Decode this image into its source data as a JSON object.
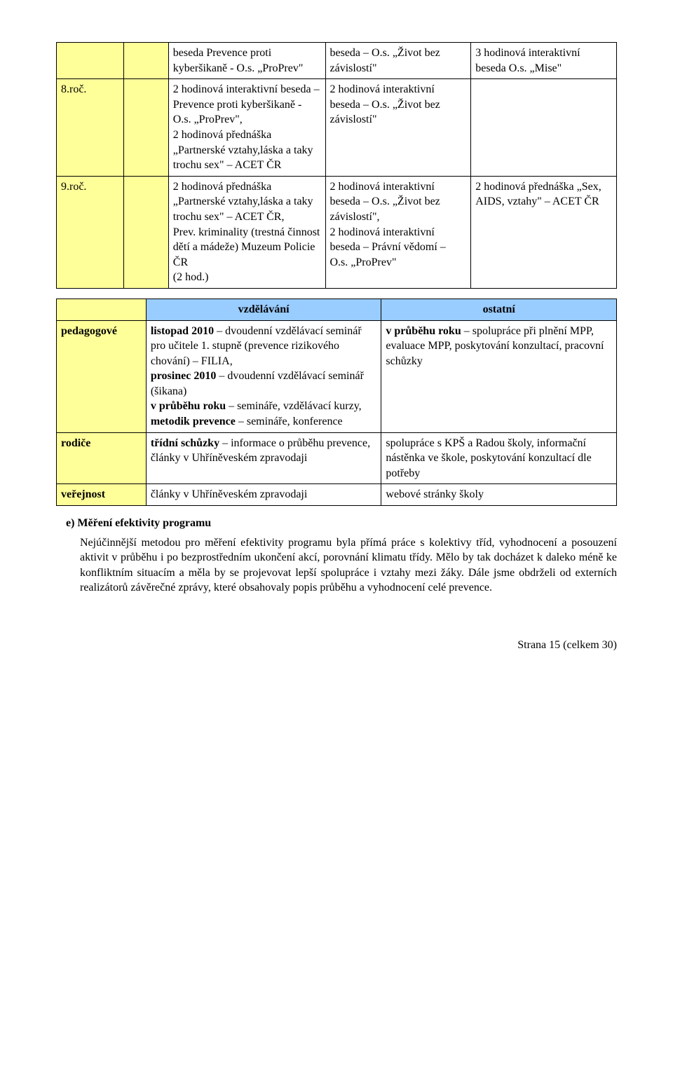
{
  "table1": {
    "rows": [
      {
        "label": "",
        "c2": "",
        "c3": "beseda Prevence proti kyberšikaně - O.s. „ProPrev\"",
        "c4": "beseda – O.s. „Život bez závislostí\"",
        "c5": "3 hodinová interaktivní beseda O.s. „Mise\""
      },
      {
        "label": "8.roč.",
        "c2": "",
        "c3": "2 hodinová interaktivní beseda – Prevence proti kyberšikaně - O.s. „ProPrev\",\n2 hodinová přednáška „Partnerské vztahy,láska a taky trochu sex\" – ACET ČR",
        "c4": "2 hodinová interaktivní beseda – O.s. „Život bez závislostí\"",
        "c5": ""
      },
      {
        "label": "9.roč.",
        "c2": "",
        "c3": "2 hodinová přednáška „Partnerské vztahy,láska a taky trochu sex\" – ACET ČR,\nPrev. kriminality (trestná činnost dětí a mádeže) Muzeum Policie ČR\n(2 hod.)",
        "c4": "2 hodinová interaktivní beseda – O.s. „Život bez závislostí\",\n2 hodinová interaktivní beseda – Právní vědomí – O.s. „ProPrev\"",
        "c5": "2 hodinová přednáška „Sex, AIDS, vztahy\" – ACET ČR"
      }
    ]
  },
  "table2": {
    "header": {
      "col2": "vzdělávání",
      "col3": "ostatní"
    },
    "rows": [
      {
        "label": "pedagogové",
        "col2_segments": [
          {
            "bold": "listopad 2010",
            "rest": " – dvoudenní vzdělávací seminář pro učitele 1. stupně (prevence rizikového chování) – FILIA,"
          },
          {
            "bold": "prosinec 2010",
            "rest": " – dvoudenní vzdělávací seminář (šikana)"
          },
          {
            "bold": "v průběhu roku",
            "rest": " – semináře, vzdělávací kurzy,"
          },
          {
            "bold": "metodik prevence",
            "rest": " – semináře, konference"
          }
        ],
        "col3_segments": [
          {
            "bold": "v průběhu roku",
            "rest": " – spolupráce při plnění MPP, evaluace MPP, poskytování konzultací, pracovní schůzky"
          }
        ]
      },
      {
        "label": "rodiče",
        "col2_segments": [
          {
            "bold": "třídní schůzky",
            "rest": " – informace o průběhu prevence,"
          },
          {
            "bold": "",
            "rest": "články v Uhříněveském zpravodaji"
          }
        ],
        "col3_segments": [
          {
            "bold": "",
            "rest": "spolupráce s KPŠ a Radou školy, informační nástěnka ve škole, poskytování konzultací dle potřeby"
          }
        ]
      },
      {
        "label": "veřejnost",
        "col2_segments": [
          {
            "bold": "",
            "rest": "články v Uhříněveském zpravodaji"
          }
        ],
        "col3_segments": [
          {
            "bold": "",
            "rest": "webové stránky školy"
          }
        ]
      }
    ]
  },
  "section_e": {
    "lead": "e) Měření efektivity programu",
    "body": "Nejúčinnější metodou pro měření efektivity programu byla přímá práce s kolektivy tříd, vyhodnocení a posouzení aktivit v průběhu i po bezprostředním ukončení akcí, porovnání klimatu třídy. Mělo by tak docházet k daleko méně ke konfliktním situacím a měla by se projevovat lepší spolupráce i vztahy mezi žáky. Dále jsme obdrželi od externích realizátorů závěrečné zprávy, které obsahovaly popis průběhu a vyhodnocení celé prevence."
  },
  "footer": "Strana 15 (celkem 30)"
}
